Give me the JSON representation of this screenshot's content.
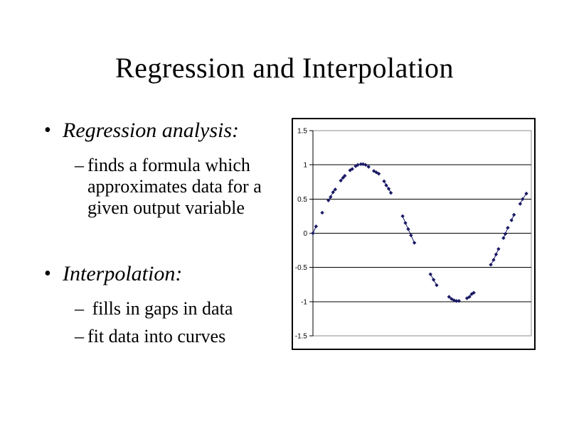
{
  "slide": {
    "title": "Regression and Interpolation",
    "bullet_glyph": "•",
    "dash_glyph": "–",
    "bullets": [
      {
        "label": "Regression analysis:",
        "sub": [
          "finds a formula which approximates data for a given output variable"
        ]
      },
      {
        "label": "Interpolation:",
        "sub": [
          " fills in gaps in data",
          "fit data into curves"
        ]
      }
    ]
  },
  "chart_data": {
    "type": "line",
    "title": "",
    "xlabel": "",
    "ylabel": "",
    "legend": "none",
    "grid": "horizontal",
    "x_range": [
      0,
      7.06
    ],
    "y_range": [
      -1.5,
      1.5
    ],
    "y_ticks": [
      "1.5",
      "1",
      "0.5",
      "0",
      "-0.5",
      "-1",
      "-1.5"
    ],
    "y_tick_values": [
      1.5,
      1,
      0.5,
      0,
      -0.5,
      -1,
      -1.5
    ],
    "marker_color": "#191965",
    "line_color": "#191965",
    "gridline_color": "#000000",
    "plot_border_color": "#8c8c8c",
    "axis_color": "#000000",
    "description": "sine-wave samples y=sin(x) with missing ranges (gaps) illustrating interpolation",
    "segments": [
      [
        [
          0.0,
          0.0
        ],
        [
          0.1,
          0.1
        ]
      ],
      [
        [
          0.3,
          0.3
        ]
      ],
      [
        [
          0.5,
          0.48
        ],
        [
          0.57,
          0.53
        ],
        [
          0.65,
          0.6
        ],
        [
          0.72,
          0.64
        ]
      ],
      [
        [
          0.9,
          0.77
        ],
        [
          0.97,
          0.81
        ],
        [
          1.03,
          0.84
        ]
      ],
      [
        [
          1.2,
          0.92
        ],
        [
          1.27,
          0.94
        ]
      ],
      [
        [
          1.38,
          0.98
        ],
        [
          1.45,
          1.0
        ]
      ],
      [
        [
          1.55,
          1.01
        ],
        [
          1.62,
          1.01
        ],
        [
          1.7,
          1.0
        ],
        [
          1.8,
          0.97
        ]
      ],
      [
        [
          1.97,
          0.91
        ],
        [
          2.05,
          0.89
        ],
        [
          2.13,
          0.87
        ]
      ],
      [
        [
          2.3,
          0.76
        ],
        [
          2.37,
          0.7
        ],
        [
          2.45,
          0.65
        ],
        [
          2.52,
          0.59
        ]
      ],
      [
        [
          2.9,
          0.25
        ],
        [
          2.99,
          0.15
        ],
        [
          3.08,
          0.06
        ],
        [
          3.17,
          -0.03
        ],
        [
          3.28,
          -0.14
        ]
      ],
      [
        [
          3.8,
          -0.6
        ],
        [
          3.9,
          -0.68
        ],
        [
          4.0,
          -0.76
        ]
      ],
      [
        [
          4.4,
          -0.93
        ],
        [
          4.48,
          -0.96
        ],
        [
          4.56,
          -0.98
        ],
        [
          4.64,
          -0.99
        ],
        [
          4.72,
          -0.99
        ]
      ],
      [
        [
          4.98,
          -0.95
        ],
        [
          5.06,
          -0.93
        ],
        [
          5.13,
          -0.89
        ],
        [
          5.2,
          -0.87
        ]
      ],
      [
        [
          5.75,
          -0.46
        ],
        [
          5.84,
          -0.39
        ],
        [
          5.92,
          -0.31
        ],
        [
          6.0,
          -0.23
        ]
      ],
      [
        [
          6.16,
          -0.07
        ],
        [
          6.22,
          -0.01
        ],
        [
          6.3,
          0.08
        ]
      ],
      [
        [
          6.42,
          0.19
        ],
        [
          6.5,
          0.27
        ]
      ],
      [
        [
          6.7,
          0.43
        ],
        [
          6.78,
          0.5
        ],
        [
          6.9,
          0.58
        ]
      ]
    ]
  }
}
